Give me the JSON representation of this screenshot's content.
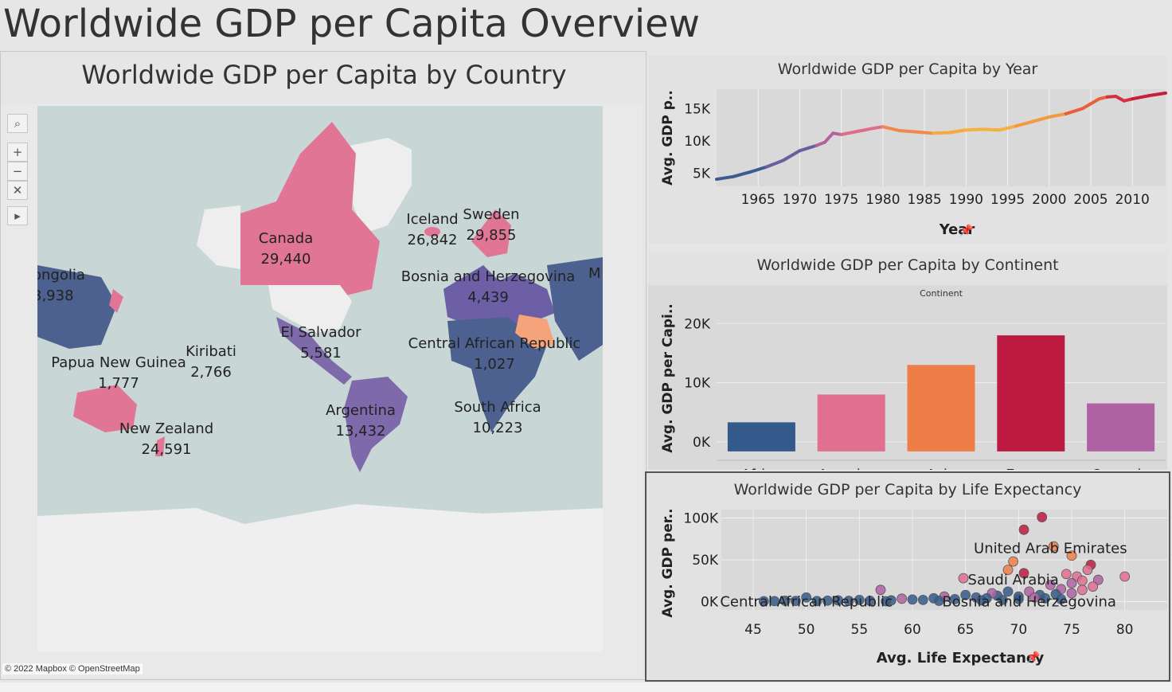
{
  "dashboard_title": "Worldwide GDP per Capita Overview",
  "map": {
    "title": "Worldwide GDP per Capita by Country",
    "attribution": "© 2022 Mapbox © OpenStreetMap",
    "labels": [
      {
        "name": "ongolia",
        "value": "3,938"
      },
      {
        "name": "Canada",
        "value": "29,440"
      },
      {
        "name": "Iceland",
        "value": "26,842"
      },
      {
        "name": "Sweden",
        "value": "29,855"
      },
      {
        "name": "Bosnia and Herzegovina",
        "value": "4,439"
      },
      {
        "name": "M",
        "value": ""
      },
      {
        "name": "El Salvador",
        "value": "5,581"
      },
      {
        "name": "Central African Republic",
        "value": "1,027"
      },
      {
        "name": "Kiribati",
        "value": "2,766"
      },
      {
        "name": "Papua New Guinea",
        "value": "1,777"
      },
      {
        "name": "Argentina",
        "value": "13,432"
      },
      {
        "name": "South Africa",
        "value": "10,223"
      },
      {
        "name": "New Zealand",
        "value": "24,591"
      }
    ],
    "tools": [
      "search-icon",
      "zoom-in-icon",
      "zoom-out-icon",
      "pin-clear-icon",
      "play-icon"
    ]
  },
  "colors": {
    "Africa": "#335a8a",
    "Americas": "#e16f90",
    "Asia": "#ef7d47",
    "Europe": "#bd1a41",
    "Oceania": "#b061a3"
  },
  "chart_data": [
    {
      "type": "line",
      "title": "Worldwide GDP per Capita by Year",
      "xlabel": "Year",
      "ylabel": "Avg. GDP p..",
      "x": [
        1960,
        1962,
        1964,
        1966,
        1968,
        1970,
        1972,
        1973,
        1974,
        1975,
        1977,
        1979,
        1980,
        1982,
        1984,
        1986,
        1988,
        1990,
        1992,
        1994,
        1996,
        1998,
        2000,
        2002,
        2004,
        2006,
        2007,
        2008,
        2009,
        2010,
        2012,
        2014
      ],
      "y": [
        4100,
        4500,
        5200,
        6000,
        7000,
        8500,
        9300,
        9800,
        11200,
        11000,
        11500,
        12000,
        12200,
        11600,
        11400,
        11200,
        11300,
        11700,
        11800,
        11700,
        12300,
        13000,
        13700,
        14200,
        15000,
        16500,
        16800,
        16900,
        16200,
        16500,
        17000,
        17400
      ],
      "xticks": [
        1965,
        1970,
        1975,
        1980,
        1985,
        1990,
        1995,
        2000,
        2005,
        2010
      ],
      "yticks": [
        {
          "v": 5000,
          "label": "5K"
        },
        {
          "v": 10000,
          "label": "10K"
        },
        {
          "v": 15000,
          "label": "15K"
        }
      ],
      "xlim": [
        1960,
        2014
      ],
      "ylim": [
        3000,
        18000
      ]
    },
    {
      "type": "bar",
      "title": "Worldwide GDP per Capita by Continent",
      "header": "Continent",
      "categories": [
        "Africa",
        "Americas",
        "Asia",
        "Europe",
        "Oceania"
      ],
      "values": [
        3300,
        8000,
        13000,
        18000,
        6500
      ],
      "ylabel": "Avg. GDP per Capi..",
      "yticks": [
        {
          "v": 0,
          "label": "0K"
        },
        {
          "v": 10000,
          "label": "10K"
        },
        {
          "v": 20000,
          "label": "20K"
        }
      ],
      "ylim": [
        -1500,
        23000
      ]
    },
    {
      "type": "scatter",
      "title": "Worldwide GDP per Capita by Life Expectancy",
      "xlabel": "Avg. Life Expectancy",
      "ylabel": "Avg. GDP per..",
      "xticks": [
        45,
        50,
        55,
        60,
        65,
        70,
        75,
        80
      ],
      "yticks": [
        {
          "v": 0,
          "label": "0K"
        },
        {
          "v": 50000,
          "label": "50K"
        },
        {
          "v": 100000,
          "label": "100K"
        }
      ],
      "xlim": [
        42,
        84
      ],
      "ylim": [
        -10000,
        110000
      ],
      "annotations": [
        {
          "text": "United Arab Emirates",
          "x": 73,
          "y": 64000
        },
        {
          "text": "Saudi Arabia",
          "x": 69.5,
          "y": 26000
        },
        {
          "text": "Central African Republic",
          "x": 50,
          "y": 0
        },
        {
          "text": "Bosnia and Herzegovina",
          "x": 71,
          "y": 0
        }
      ],
      "points": [
        {
          "x": 72.2,
          "y": 101000,
          "c": "Europe"
        },
        {
          "x": 70.5,
          "y": 86000,
          "c": "Europe"
        },
        {
          "x": 73.3,
          "y": 66000,
          "c": "Asia"
        },
        {
          "x": 69.5,
          "y": 48000,
          "c": "Asia"
        },
        {
          "x": 75,
          "y": 55000,
          "c": "Asia"
        },
        {
          "x": 76.8,
          "y": 44000,
          "c": "Europe"
        },
        {
          "x": 80,
          "y": 30000,
          "c": "Americas"
        },
        {
          "x": 64.8,
          "y": 28000,
          "c": "Americas"
        },
        {
          "x": 69,
          "y": 38000,
          "c": "Asia"
        },
        {
          "x": 70.5,
          "y": 34000,
          "c": "Europe"
        },
        {
          "x": 74.5,
          "y": 33000,
          "c": "Americas"
        },
        {
          "x": 75.5,
          "y": 30000,
          "c": "Americas"
        },
        {
          "x": 76.5,
          "y": 38000,
          "c": "Americas"
        },
        {
          "x": 77.5,
          "y": 26000,
          "c": "Oceania"
        },
        {
          "x": 76,
          "y": 25000,
          "c": "Americas"
        },
        {
          "x": 75,
          "y": 22000,
          "c": "Oceania"
        },
        {
          "x": 73,
          "y": 20000,
          "c": "Oceania"
        },
        {
          "x": 77,
          "y": 18000,
          "c": "Americas"
        },
        {
          "x": 74,
          "y": 15000,
          "c": "Oceania"
        },
        {
          "x": 71,
          "y": 12000,
          "c": "Oceania"
        },
        {
          "x": 72,
          "y": 8000,
          "c": "Africa"
        },
        {
          "x": 70,
          "y": 6000,
          "c": "Africa"
        },
        {
          "x": 68,
          "y": 7000,
          "c": "Africa"
        },
        {
          "x": 66,
          "y": 5000,
          "c": "Africa"
        },
        {
          "x": 67.5,
          "y": 10000,
          "c": "Oceania"
        },
        {
          "x": 69,
          "y": 12000,
          "c": "Africa"
        },
        {
          "x": 73.5,
          "y": 9000,
          "c": "Africa"
        },
        {
          "x": 75,
          "y": 10000,
          "c": "Oceania"
        },
        {
          "x": 64,
          "y": 3000,
          "c": "Africa"
        },
        {
          "x": 62,
          "y": 4000,
          "c": "Africa"
        },
        {
          "x": 60,
          "y": 2500,
          "c": "Africa"
        },
        {
          "x": 58,
          "y": 1500,
          "c": "Africa"
        },
        {
          "x": 57,
          "y": 14000,
          "c": "Oceania"
        },
        {
          "x": 56,
          "y": 1000,
          "c": "Africa"
        },
        {
          "x": 54,
          "y": 900,
          "c": "Africa"
        },
        {
          "x": 52,
          "y": 1200,
          "c": "Africa"
        },
        {
          "x": 50,
          "y": 5000,
          "c": "Africa"
        },
        {
          "x": 49,
          "y": 800,
          "c": "Africa"
        },
        {
          "x": 47,
          "y": 600,
          "c": "Africa"
        },
        {
          "x": 46,
          "y": 500,
          "c": "Africa"
        },
        {
          "x": 48,
          "y": 1000,
          "c": "Africa"
        },
        {
          "x": 51,
          "y": 700,
          "c": "Africa"
        },
        {
          "x": 53,
          "y": 1500,
          "c": "Africa"
        },
        {
          "x": 55,
          "y": 2000,
          "c": "Africa"
        },
        {
          "x": 59,
          "y": 3500,
          "c": "Oceania"
        },
        {
          "x": 61,
          "y": 2000,
          "c": "Africa"
        },
        {
          "x": 63,
          "y": 6000,
          "c": "Oceania"
        },
        {
          "x": 65,
          "y": 8000,
          "c": "Africa"
        },
        {
          "x": 67,
          "y": 4000,
          "c": "Africa"
        },
        {
          "x": 70,
          "y": 3000,
          "c": "Africa"
        },
        {
          "x": 71.5,
          "y": 5000,
          "c": "Oceania"
        },
        {
          "x": 72.5,
          "y": 4000,
          "c": "Africa"
        },
        {
          "x": 74,
          "y": 3000,
          "c": "Africa"
        },
        {
          "x": 76,
          "y": 14000,
          "c": "Americas"
        },
        {
          "x": 68.5,
          "y": 2000,
          "c": "Africa"
        },
        {
          "x": 66.5,
          "y": 1500,
          "c": "Africa"
        },
        {
          "x": 62.5,
          "y": 1000,
          "c": "Africa"
        },
        {
          "x": 57.5,
          "y": 500,
          "c": "Africa"
        }
      ]
    }
  ]
}
